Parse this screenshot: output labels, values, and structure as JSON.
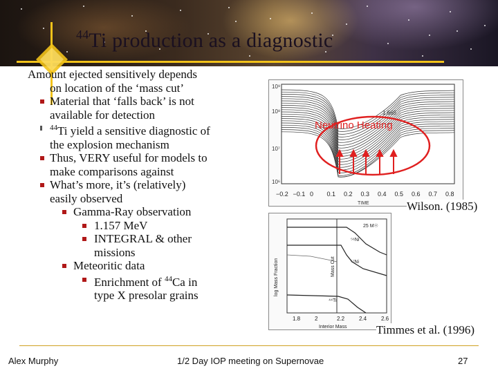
{
  "slide": {
    "title_sup": "44",
    "title_main": "Ti production as a diagnostic"
  },
  "bullets": [
    {
      "level": 0,
      "bullet": false,
      "text": "Amount ejected sensitively depends"
    },
    {
      "level": 0,
      "bullet": false,
      "cont": true,
      "text": "on location of the ‘mass cut’"
    },
    {
      "level": 1,
      "bullet": "square",
      "text": "Material that ‘falls back’ is not"
    },
    {
      "level": 1,
      "bullet": false,
      "cont": true,
      "text": "available for detection"
    },
    {
      "level": 1,
      "bullet": "hollow",
      "sup": "44",
      "text": "Ti yield a sensitive diagnostic of"
    },
    {
      "level": 1,
      "bullet": false,
      "cont": true,
      "text": "the explosion mechanism"
    },
    {
      "level": 1,
      "bullet": "square",
      "text": "Thus, VERY useful for models to"
    },
    {
      "level": 1,
      "bullet": false,
      "cont": true,
      "text": "make comparisons against"
    },
    {
      "level": 1,
      "bullet": "square",
      "text": "What’s more, it’s (relatively)"
    },
    {
      "level": 1,
      "bullet": false,
      "cont": true,
      "text": "easily observed"
    },
    {
      "level": 2,
      "bullet": "square",
      "text": "Gamma-Ray observation"
    },
    {
      "level": 3,
      "bullet": "square",
      "text": "1.157 MeV"
    },
    {
      "level": 3,
      "bullet": "square",
      "text": "INTEGRAL & other"
    },
    {
      "level": 3,
      "bullet": false,
      "cont": true,
      "text": "missions"
    },
    {
      "level": 2,
      "bullet": "square",
      "text": "Meteoritic data"
    },
    {
      "level": 3,
      "bullet": "square",
      "text": "Enrichment of ",
      "sup_after": "44",
      "text_after": "Ca in"
    },
    {
      "level": 3,
      "bullet": false,
      "cont": true,
      "text": "type X presolar grains"
    }
  ],
  "figure1": {
    "annotation": "Neutrino Heating",
    "value_label": "1.665",
    "y_ticks": [
      "10⁹",
      "10⁸",
      "10⁷",
      "10⁶"
    ],
    "x_ticks": [
      "−0.2",
      "−0.1",
      "0",
      "0.1",
      "0.2",
      "0.3",
      "0.4",
      "0.5",
      "0.6",
      "0.7",
      "0.8"
    ],
    "x_label": "TIME",
    "caption": "Wilson. (1985)",
    "accent_color": "#e02020"
  },
  "figure2": {
    "y_label": "log Mass Fraction",
    "x_label": "Interior Mass",
    "x_ticks": [
      "1.8",
      "2",
      "2.2",
      "2.4",
      "2.6"
    ],
    "mass_label": "25 M☉",
    "curve_labels": [
      "⁵⁶Ni",
      "⁵⁷Ni",
      "⁴⁴Ti"
    ],
    "cut_label": "Mass Cut",
    "caption": "Timmes et al. (1996)"
  },
  "footer": {
    "author": "Alex Murphy",
    "meeting": "1/2 Day IOP meeting on Supernovae",
    "page": "27"
  },
  "colors": {
    "accent_gold": "#f2c21a",
    "bullet_red": "#b01818"
  }
}
